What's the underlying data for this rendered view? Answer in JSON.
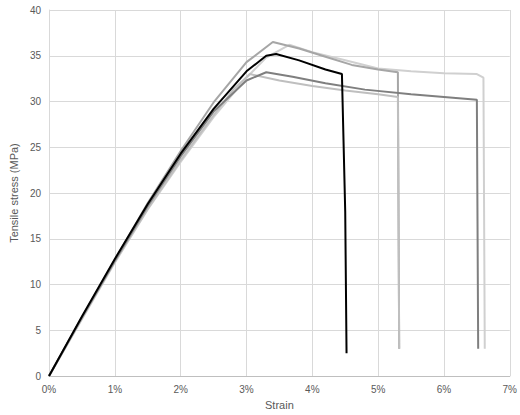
{
  "chart_data": {
    "type": "line",
    "x_label": "Strain",
    "y_label": "Tensile stress (MPa)",
    "xlim": [
      0,
      7
    ],
    "xticks": [
      {
        "value": 0,
        "label": "0%"
      },
      {
        "value": 1,
        "label": "1%"
      },
      {
        "value": 2,
        "label": "2%"
      },
      {
        "value": 3,
        "label": "3%"
      },
      {
        "value": 4,
        "label": "4%"
      },
      {
        "value": 5,
        "label": "5%"
      },
      {
        "value": 6,
        "label": "6%"
      },
      {
        "value": 7,
        "label": "7%"
      }
    ],
    "ylim": [
      0,
      40
    ],
    "yticks": [
      0,
      5,
      10,
      15,
      20,
      25,
      30,
      35,
      40
    ],
    "grid": true,
    "series": [
      {
        "color": "#d0d0d0",
        "x": [
          0,
          0.5,
          1,
          1.5,
          2,
          2.5,
          3,
          3.3,
          3.65,
          4,
          4.5,
          5,
          5.5,
          6,
          6.5,
          6.6,
          6.62
        ],
        "values": [
          0,
          6.2,
          12.4,
          18.2,
          23.4,
          28.3,
          32.6,
          34.8,
          36.2,
          35.4,
          34.5,
          33.6,
          33.3,
          33.1,
          33.0,
          32.6,
          3.0
        ]
      },
      {
        "color": "#a6a6a6",
        "x": [
          0,
          0.5,
          1,
          1.5,
          2,
          2.5,
          3,
          3.4,
          3.8,
          4.2,
          4.6,
          5.0,
          5.3,
          5.32
        ],
        "values": [
          0,
          6.4,
          12.7,
          18.9,
          24.6,
          29.9,
          34.3,
          36.5,
          35.8,
          34.9,
          34.0,
          33.5,
          33.2,
          3.0
        ]
      },
      {
        "color": "#bfbfbf",
        "x": [
          0,
          0.5,
          1,
          1.5,
          2,
          2.5,
          2.8,
          3.05,
          3.5,
          4,
          4.5,
          5.0,
          5.3,
          5.32
        ],
        "values": [
          0,
          6.3,
          12.5,
          18.3,
          23.6,
          28.5,
          31.3,
          33.0,
          32.3,
          31.7,
          31.2,
          30.8,
          30.5,
          3.0
        ]
      },
      {
        "color": "#7f7f7f",
        "x": [
          0,
          0.5,
          1,
          1.5,
          2,
          2.5,
          3,
          3.3,
          3.7,
          4.2,
          4.8,
          5.5,
          6.0,
          6.5,
          6.52
        ],
        "values": [
          0,
          6.4,
          12.6,
          18.6,
          24.0,
          28.9,
          32.3,
          33.2,
          32.7,
          32.0,
          31.3,
          30.8,
          30.5,
          30.2,
          3.0
        ]
      },
      {
        "color": "#000000",
        "x": [
          0,
          0.5,
          1,
          1.5,
          2,
          2.5,
          3,
          3.3,
          3.45,
          3.8,
          4.2,
          4.45,
          4.5,
          4.52
        ],
        "values": [
          0,
          6.5,
          12.8,
          18.8,
          24.3,
          29.2,
          33.3,
          35.0,
          35.2,
          34.5,
          33.5,
          33.0,
          18.0,
          2.5
        ]
      }
    ]
  }
}
